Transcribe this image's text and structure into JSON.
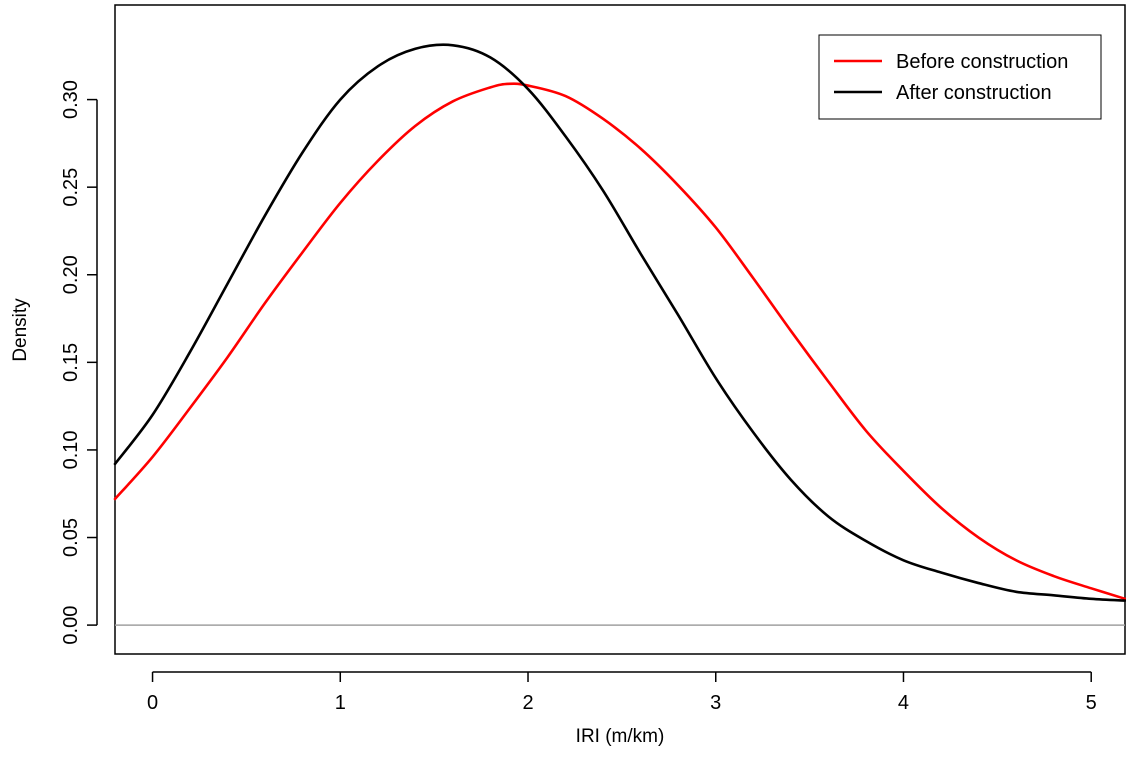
{
  "chart_data": {
    "type": "line",
    "title": "",
    "xlabel": "IRI (m/km)",
    "ylabel": "Density",
    "xlim": [
      -0.2,
      5.18
    ],
    "ylim": [
      -0.0165,
      0.354
    ],
    "xticks": [
      0,
      1,
      2,
      3,
      4,
      5
    ],
    "yticks": [
      0.0,
      0.05,
      0.1,
      0.15,
      0.2,
      0.25,
      0.3
    ],
    "xtick_labels": [
      "0",
      "1",
      "2",
      "3",
      "4",
      "5"
    ],
    "ytick_labels": [
      "0.00",
      "0.05",
      "0.10",
      "0.15",
      "0.20",
      "0.25",
      "0.30"
    ],
    "legend_position": "top-right",
    "grid": false,
    "baseline_y": 0,
    "series": [
      {
        "name": "Before construction",
        "color": "#ff0000",
        "x": [
          -0.2,
          0,
          0.2,
          0.4,
          0.6,
          0.8,
          1.0,
          1.2,
          1.4,
          1.6,
          1.8,
          1.9,
          2.0,
          2.2,
          2.4,
          2.6,
          2.8,
          3.0,
          3.2,
          3.4,
          3.6,
          3.8,
          4.0,
          4.2,
          4.4,
          4.6,
          4.8,
          5.0,
          5.18
        ],
        "y": [
          0.072,
          0.096,
          0.124,
          0.153,
          0.184,
          0.213,
          0.241,
          0.265,
          0.285,
          0.299,
          0.307,
          0.309,
          0.308,
          0.302,
          0.289,
          0.272,
          0.251,
          0.227,
          0.198,
          0.168,
          0.139,
          0.111,
          0.088,
          0.067,
          0.05,
          0.037,
          0.028,
          0.021,
          0.015
        ]
      },
      {
        "name": "After construction",
        "color": "#000000",
        "x": [
          -0.2,
          0,
          0.2,
          0.4,
          0.6,
          0.8,
          1.0,
          1.2,
          1.4,
          1.6,
          1.8,
          2.0,
          2.2,
          2.4,
          2.6,
          2.8,
          3.0,
          3.2,
          3.4,
          3.6,
          3.8,
          4.0,
          4.2,
          4.4,
          4.6,
          4.8,
          5.0,
          5.18
        ],
        "y": [
          0.092,
          0.12,
          0.156,
          0.195,
          0.234,
          0.27,
          0.3,
          0.319,
          0.329,
          0.331,
          0.324,
          0.306,
          0.279,
          0.248,
          0.212,
          0.177,
          0.141,
          0.11,
          0.083,
          0.062,
          0.048,
          0.037,
          0.03,
          0.024,
          0.019,
          0.017,
          0.015,
          0.014
        ]
      }
    ]
  }
}
